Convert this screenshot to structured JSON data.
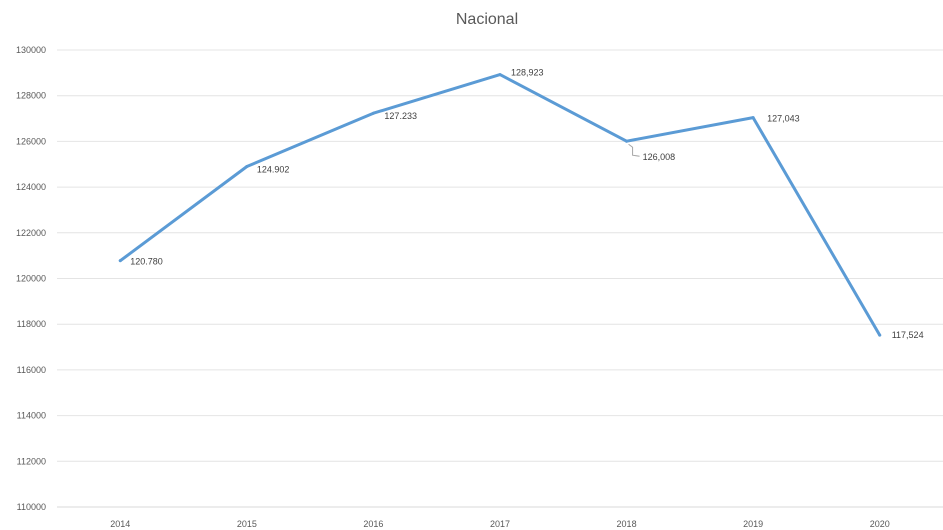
{
  "chart_data": {
    "type": "line",
    "title": "Nacional",
    "xlabel": "",
    "ylabel": "",
    "categories": [
      "2014",
      "2015",
      "2016",
      "2017",
      "2018",
      "2019",
      "2020"
    ],
    "ylim": [
      110000,
      130000
    ],
    "yticks": [
      "110000",
      "112000",
      "114000",
      "116000",
      "118000",
      "120000",
      "122000",
      "124000",
      "126000",
      "128000",
      "130000"
    ],
    "grid": true,
    "legend": "none",
    "series": [
      {
        "values": [
          120780,
          124902,
          127233,
          128923,
          126008,
          127043,
          117524
        ],
        "labels": [
          "120.780",
          "124.902",
          "127.233",
          "128,923",
          "126,008",
          "127,043",
          "117,524"
        ],
        "color": "#5b9bd5"
      }
    ]
  }
}
